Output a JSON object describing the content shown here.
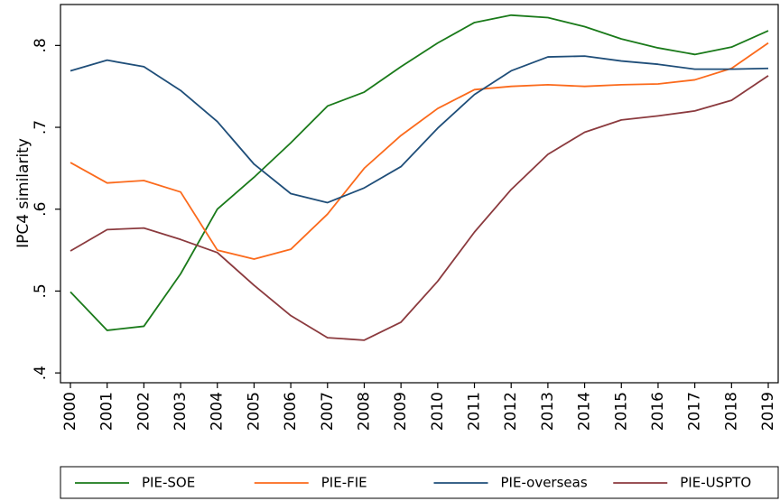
{
  "chart_data": {
    "type": "line",
    "y_label": "IPC4 similarity",
    "categories": [
      "2000",
      "2001",
      "2002",
      "2003",
      "2004",
      "2005",
      "2006",
      "2007",
      "2008",
      "2009",
      "2010",
      "2011",
      "2012",
      "2013",
      "2014",
      "2015",
      "2016",
      "2017",
      "2018",
      "2019"
    ],
    "series": [
      {
        "name": "PIE-SOE",
        "color": "#1a7a1a",
        "values": [
          0.499,
          0.452,
          0.457,
          0.521,
          0.6,
          0.639,
          0.681,
          0.726,
          0.743,
          0.774,
          0.803,
          0.828,
          0.837,
          0.834,
          0.823,
          0.808,
          0.797,
          0.789,
          0.798,
          0.818
        ]
      },
      {
        "name": "PIE-FIE",
        "color": "#fb6a1c",
        "values": [
          0.657,
          0.632,
          0.635,
          0.621,
          0.55,
          0.539,
          0.551,
          0.594,
          0.65,
          0.69,
          0.723,
          0.746,
          0.75,
          0.752,
          0.75,
          0.752,
          0.753,
          0.758,
          0.772,
          0.803
        ]
      },
      {
        "name": "PIE-overseas",
        "color": "#1f4e79",
        "values": [
          0.769,
          0.782,
          0.774,
          0.745,
          0.707,
          0.655,
          0.619,
          0.608,
          0.626,
          0.652,
          0.699,
          0.74,
          0.769,
          0.786,
          0.787,
          0.781,
          0.777,
          0.771,
          0.771,
          0.772
        ]
      },
      {
        "name": "PIE-USPTO",
        "color": "#8b3a3e",
        "values": [
          0.549,
          0.575,
          0.577,
          0.563,
          0.547,
          0.507,
          0.47,
          0.443,
          0.44,
          0.462,
          0.512,
          0.572,
          0.624,
          0.667,
          0.694,
          0.709,
          0.714,
          0.72,
          0.733,
          0.763
        ]
      }
    ],
    "ylim": [
      0.388,
      0.85
    ],
    "yticks": [
      {
        "value": 0.4,
        "label": ".4"
      },
      {
        "value": 0.5,
        "label": ".5"
      },
      {
        "value": 0.6,
        "label": ".6"
      },
      {
        "value": 0.7,
        "label": ".7"
      },
      {
        "value": 0.8,
        "label": ".8"
      }
    ],
    "legend": "bottom"
  }
}
